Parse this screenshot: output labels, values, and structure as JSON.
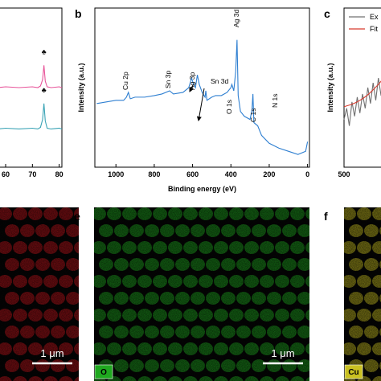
{
  "chart_data": [
    {
      "type": "line",
      "x": [
        57,
        60,
        65,
        70,
        72,
        73,
        73.8,
        74.3,
        74.8,
        75.5,
        77,
        80,
        81
      ],
      "series": [
        {
          "color": "#e8559a",
          "values": [
            50,
            50.5,
            50,
            50.5,
            50,
            51,
            55,
            64,
            54,
            50.5,
            50,
            50.5,
            50
          ]
        },
        {
          "color": "#3aa3b5",
          "values": [
            24,
            24.5,
            24,
            24.5,
            24,
            25,
            30,
            40,
            29,
            24.5,
            24,
            24.5,
            24
          ]
        }
      ],
      "xlim": [
        57,
        81
      ],
      "xticks": [
        60,
        70,
        80
      ],
      "ylim": [
        0,
        100
      ],
      "annotations": [
        {
          "text": "♣",
          "x": 74.3,
          "y": 71
        },
        {
          "text": "♣",
          "x": 74.3,
          "y": 47
        }
      ]
    },
    {
      "type": "line",
      "label": "b",
      "x_label": "Binding energy (eV)",
      "y_label": "Intensity (a.u.)",
      "x": [
        1100,
        1050,
        1000,
        960,
        945,
        935,
        925,
        900,
        850,
        800,
        760,
        720,
        700,
        650,
        620,
        605,
        595,
        585,
        575,
        565,
        550,
        535,
        531,
        525,
        500,
        480,
        450,
        420,
        400,
        395,
        385,
        375,
        368,
        362,
        350,
        330,
        300,
        290,
        285,
        280,
        260,
        240,
        200,
        150,
        100,
        50,
        10,
        0
      ],
      "series": [
        {
          "color": "#2e7fd1",
          "values": [
            40,
            41,
            42,
            42,
            44,
            47,
            43,
            44,
            44,
            45,
            46,
            48,
            46,
            47,
            50,
            56,
            52,
            50,
            58,
            52,
            47,
            44,
            48,
            42,
            44,
            45,
            45,
            47,
            50,
            52,
            48,
            60,
            80,
            45,
            35,
            32,
            30,
            36,
            46,
            28,
            26,
            20,
            15,
            12,
            10,
            8,
            10,
            16
          ]
        }
      ],
      "xlim": [
        1110,
        -10
      ],
      "xticks": [
        1000,
        800,
        600,
        400,
        200,
        0
      ],
      "ylim": [
        0,
        100
      ],
      "annotations": [
        {
          "text": "Cu 2p"
        },
        {
          "text": "Sn 3p"
        },
        {
          "text": "Ag 3p"
        },
        {
          "text": "Sn 3d"
        },
        {
          "text": "O 1s"
        },
        {
          "text": "N 1s"
        },
        {
          "text": "Ag 3d"
        },
        {
          "text": "C 1s"
        }
      ]
    },
    {
      "type": "line",
      "label": "c",
      "y_label": "Intensity (a.u.)",
      "x": [
        500,
        501,
        502,
        503,
        504,
        505,
        506,
        507,
        508,
        509,
        510,
        511,
        512,
        513,
        514,
        515
      ],
      "series": [
        {
          "name": "Ex",
          "color": "#707070",
          "values": [
            30,
            37,
            26,
            41,
            32,
            44,
            34,
            46,
            37,
            50,
            40,
            53,
            42,
            56,
            45,
            58
          ]
        },
        {
          "name": "Fit",
          "color": "#d83a2e",
          "values": [
            38,
            38.5,
            39,
            39.6,
            40.3,
            41,
            42,
            43,
            44.2,
            45.5,
            47,
            48.6,
            50.3,
            52,
            54,
            56
          ]
        }
      ],
      "xlim": [
        500,
        531
      ],
      "xticks": [
        500
      ],
      "ylim": [
        0,
        100
      ]
    }
  ],
  "maps": [
    {
      "color": "#c0141c",
      "scale_bar": "1 μm"
    },
    {
      "label": "e",
      "color": "#1fa81f",
      "element": "O",
      "scale_bar": "1 μm"
    },
    {
      "label": "f",
      "color": "#c9c021",
      "element": "Cu"
    }
  ]
}
